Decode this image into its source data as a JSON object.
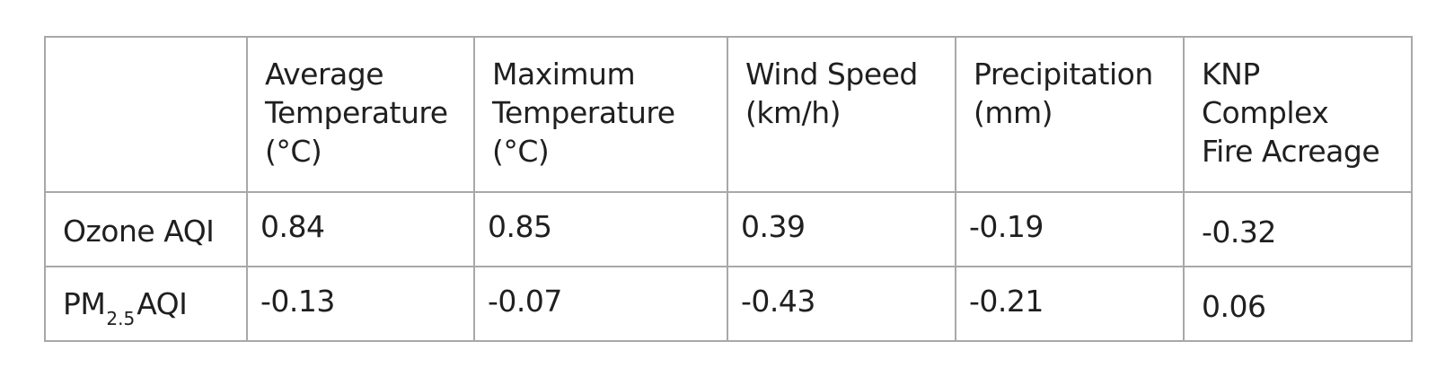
{
  "table": {
    "columns": [
      "",
      "Average\nTemperature\n(°C)",
      "Maximum\nTemperature\n(°C)",
      "Wind Speed\n(km/h)",
      "Precipitation\n(mm)",
      "KNP\nComplex\nFire Acreage"
    ],
    "rows": [
      {
        "label": "Ozone AQI",
        "values": [
          "0.84",
          "0.85",
          "0.39",
          "-0.19",
          "-0.32"
        ]
      },
      {
        "label_prefix": "PM",
        "label_subscript": "2.5",
        "label_suffix": "AQI",
        "values": [
          "-0.13",
          "-0.07",
          "-0.43",
          "-0.21",
          "0.06"
        ]
      }
    ]
  },
  "colors": {
    "grid_line": "#a8a8a8",
    "text": "#1f1f1f",
    "background": "#ffffff"
  }
}
